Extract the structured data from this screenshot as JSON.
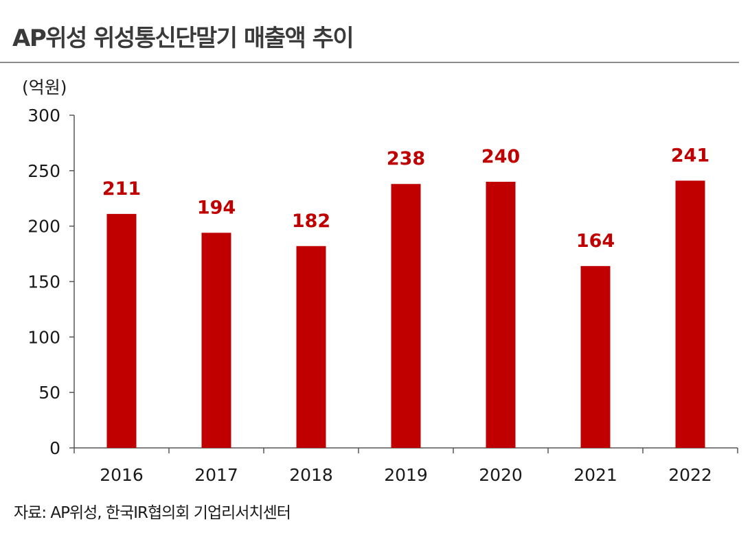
{
  "title": "AP위성 위성통신단말기 매출액 추이",
  "unit_label": "(억원)",
  "source": "자료: AP위성, 한국IR협의회 기업리서치센터",
  "colors": {
    "bar": "#c00000",
    "label": "#c00000",
    "axis": "#555555"
  },
  "chart_data": {
    "type": "bar",
    "title": "AP위성 위성통신단말기 매출액 추이",
    "xlabel": "",
    "ylabel": "(억원)",
    "categories": [
      "2016",
      "2017",
      "2018",
      "2019",
      "2020",
      "2021",
      "2022"
    ],
    "values": [
      211,
      194,
      182,
      238,
      240,
      164,
      241
    ],
    "data_labels": [
      "211",
      "194",
      "182",
      "238",
      "240",
      "164",
      "241"
    ],
    "ylim": [
      0,
      300
    ],
    "yticks": [
      0,
      50,
      100,
      150,
      200,
      250,
      300
    ],
    "grid": false,
    "legend": "none"
  }
}
